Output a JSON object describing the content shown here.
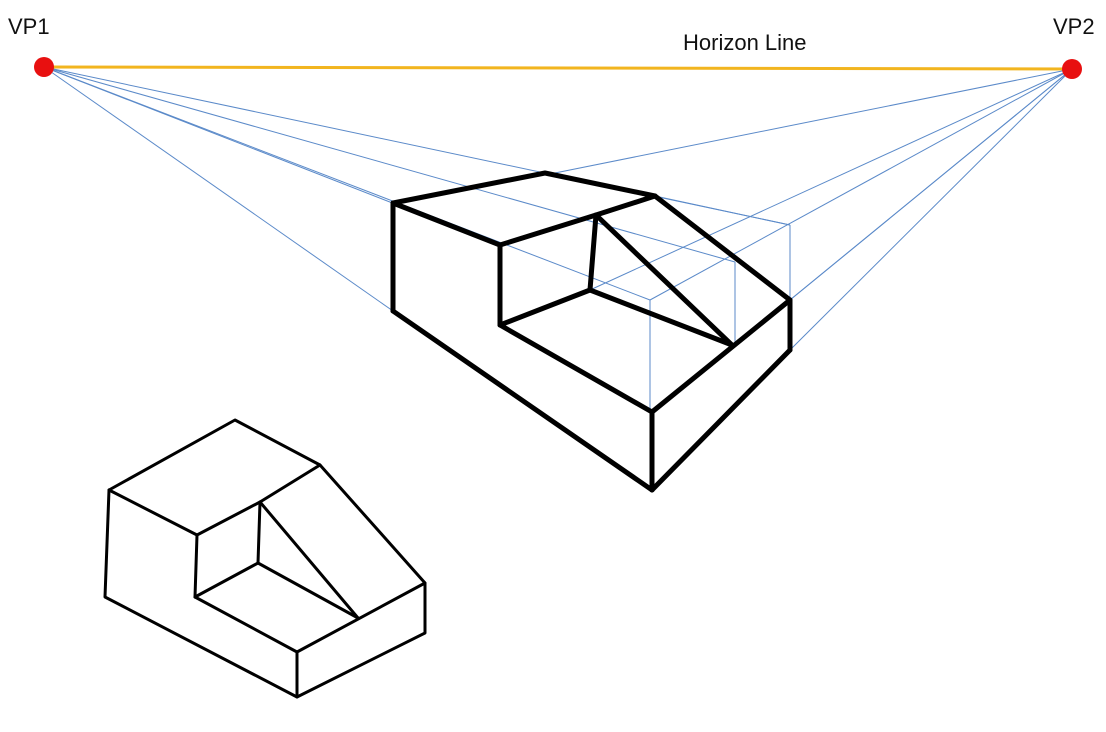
{
  "labels": {
    "vp1": "VP1",
    "vp2": "VP2",
    "horizon": "Horizon Line"
  },
  "colors": {
    "horizon_line": "#f2b51f",
    "vanishing_point": "#e81010",
    "guide_lines": "#5b8ac9",
    "edges": "#000000"
  }
}
